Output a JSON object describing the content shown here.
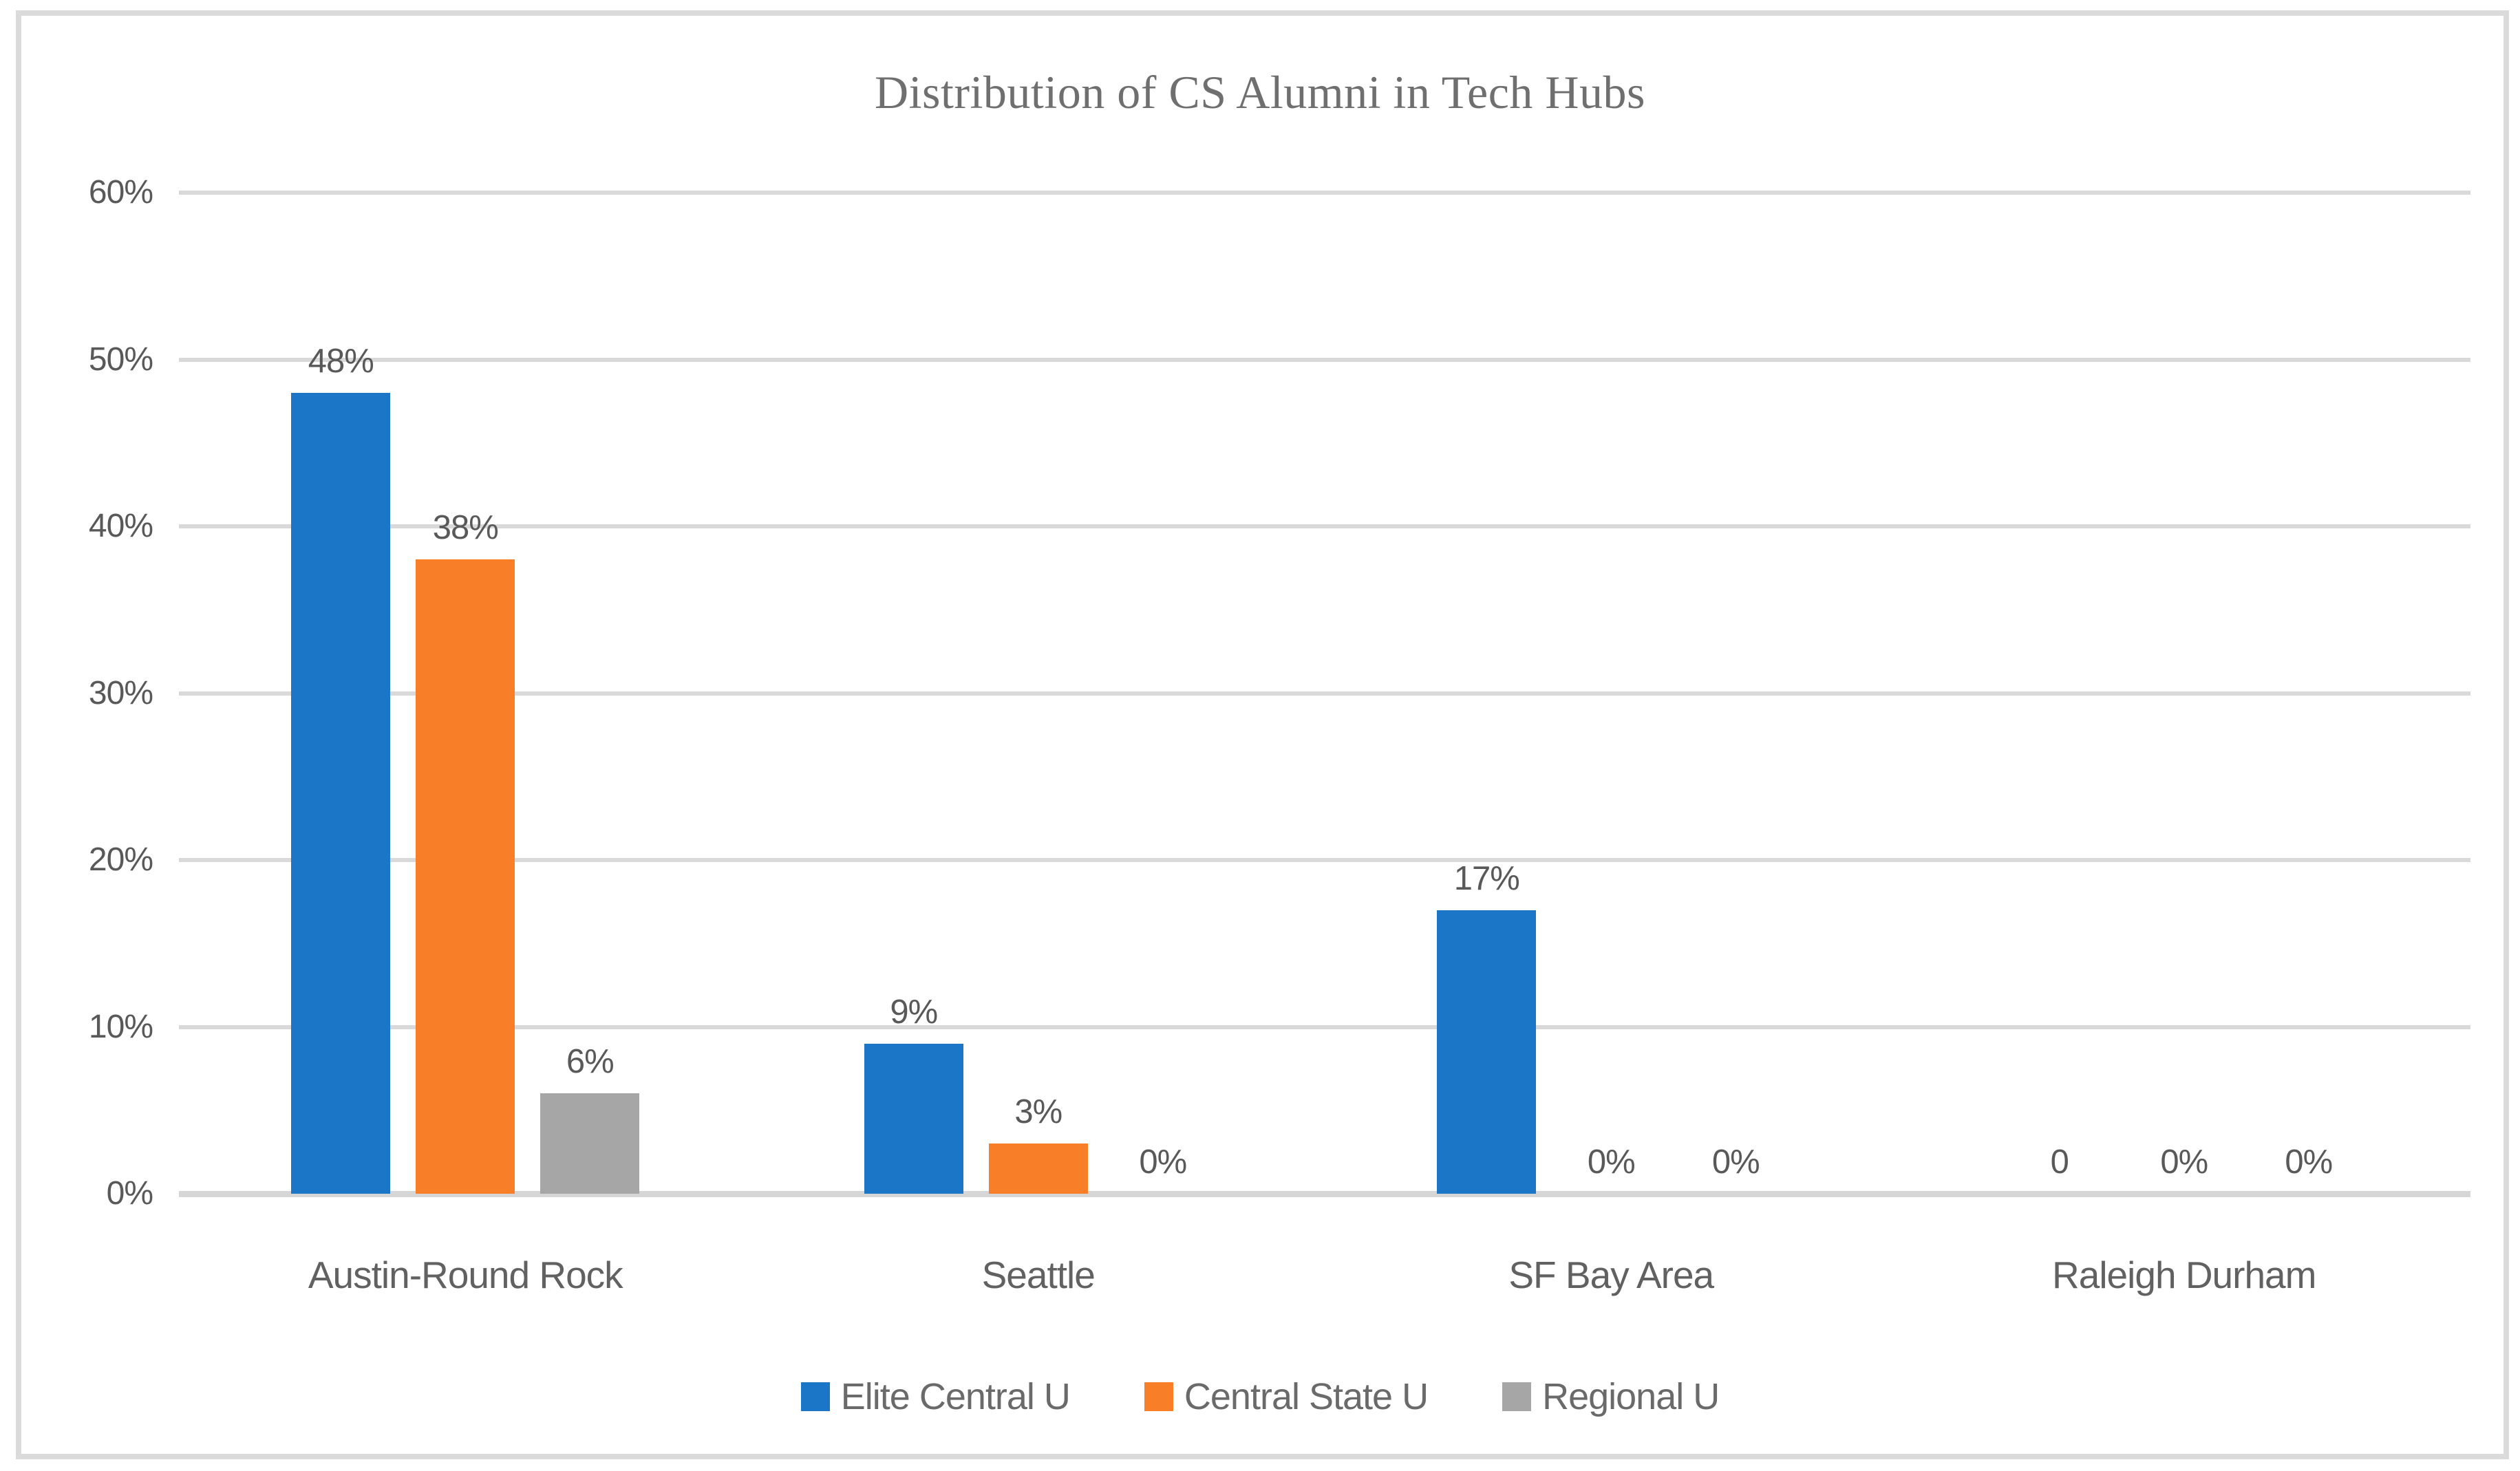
{
  "chart_data": {
    "type": "bar",
    "title": "Distribution of CS Alumni in Tech Hubs",
    "categories": [
      "Austin-Round Rock",
      "Seattle",
      "SF Bay Area",
      "Raleigh Durham"
    ],
    "series": [
      {
        "name": "Elite Central U",
        "color": "#1c76c8",
        "values": [
          48,
          9,
          17,
          0
        ],
        "labels": [
          "48%",
          "9%",
          "17%",
          "0"
        ]
      },
      {
        "name": "Central State U",
        "color": "#f97e28",
        "values": [
          38,
          3,
          0,
          0
        ],
        "labels": [
          "38%",
          "3%",
          "0%",
          "0%"
        ]
      },
      {
        "name": "Regional U",
        "color": "#a6a6a6",
        "values": [
          6,
          0,
          0,
          0
        ],
        "labels": [
          "6%",
          "0%",
          "0%",
          "0%"
        ]
      }
    ],
    "yticks": [
      "60%",
      "50%",
      "40%",
      "30%",
      "20%",
      "10%",
      "0%"
    ],
    "ylim": [
      0,
      60
    ],
    "grid": true,
    "legend_position": "bottom",
    "xlabel": "",
    "ylabel": ""
  },
  "colors": {
    "frame_border": "#dbdbdb",
    "gridline": "#d9d9d9",
    "axis_line": "#d6d6d6",
    "title_text": "#6f6f6f",
    "label_text": "#595959"
  }
}
